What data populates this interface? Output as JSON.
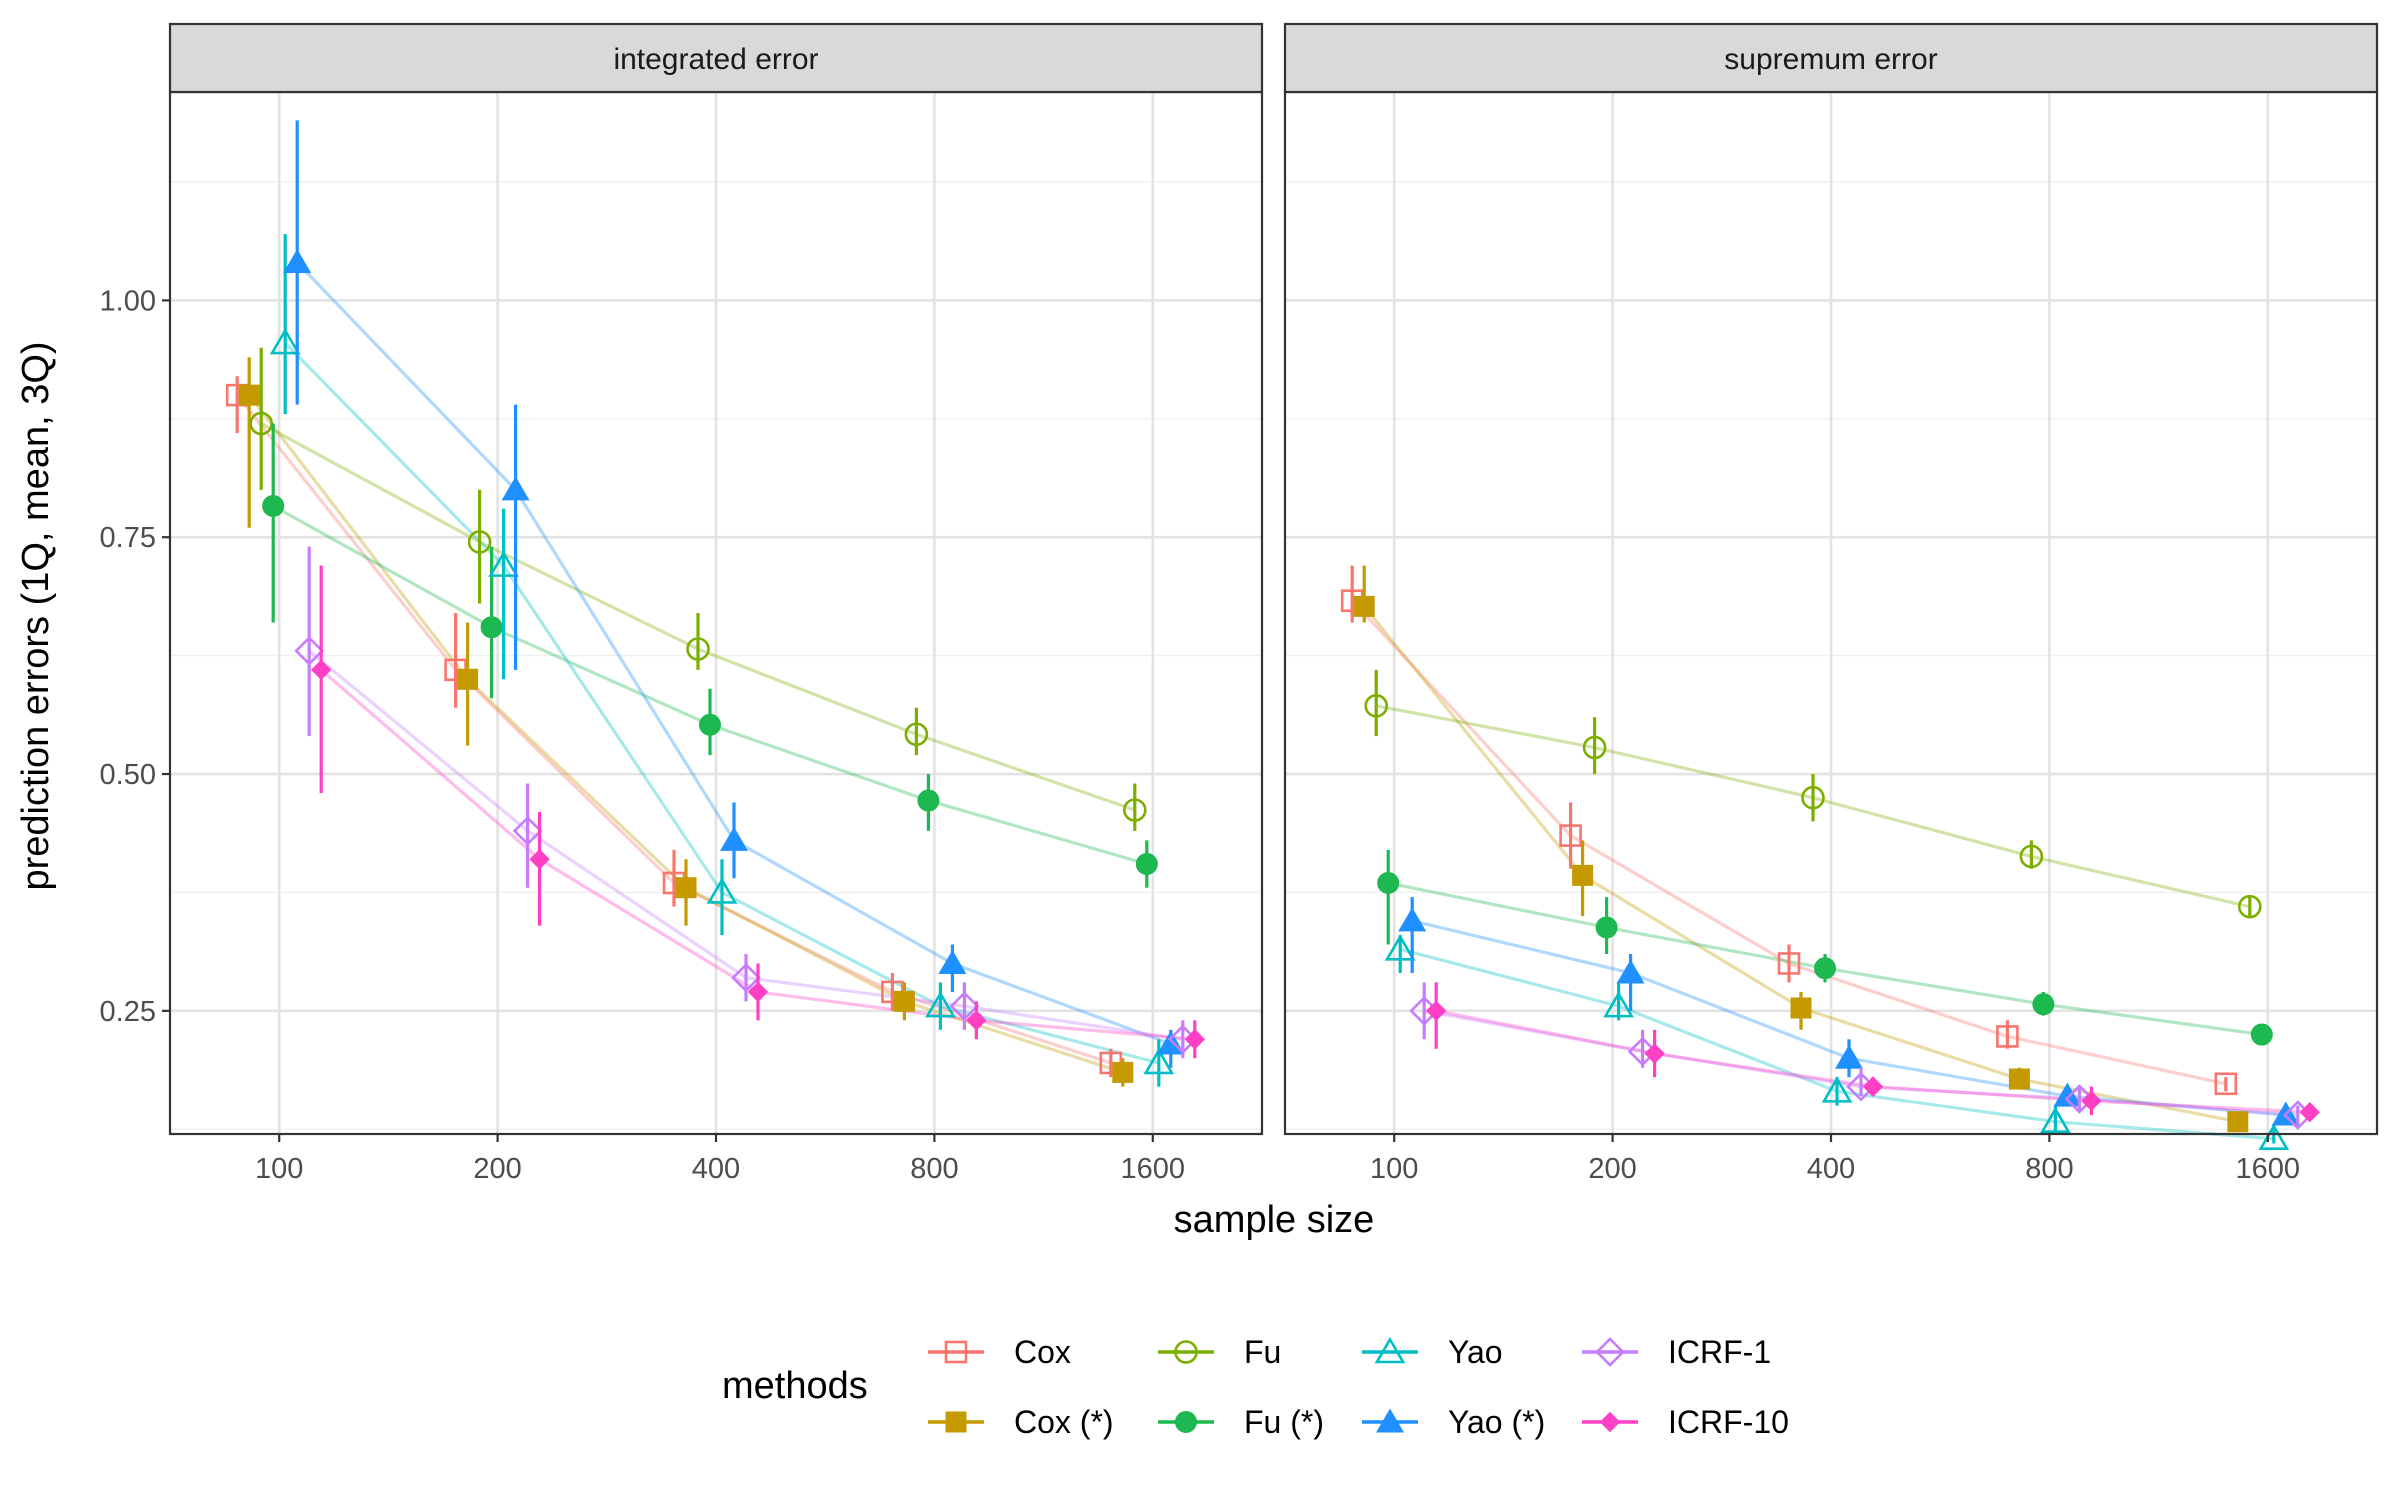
{
  "chart_data": {
    "type": "line",
    "ylabel": "prediction errors (1Q, mean, 3Q)",
    "xlabel": "sample size",
    "x": [
      100,
      200,
      400,
      800,
      1600
    ],
    "xtick_labels": [
      "100",
      "200",
      "400",
      "800",
      "1600"
    ],
    "yticks": [
      0.25,
      0.5,
      0.75,
      1.0
    ],
    "ytick_labels": [
      "0.25",
      "0.50",
      "0.75",
      "1.00"
    ],
    "grid": true,
    "legend_title": "methods",
    "legend_position": "bottom",
    "methods": [
      {
        "name": "Cox",
        "color": "#F8766D",
        "shape": "square-open"
      },
      {
        "name": "Cox (*)",
        "color": "#C49A00",
        "shape": "square-filled"
      },
      {
        "name": "Fu",
        "color": "#7CAE00",
        "shape": "circle-open"
      },
      {
        "name": "Fu (*)",
        "color": "#1DB84F",
        "shape": "circle-filled"
      },
      {
        "name": "Yao",
        "color": "#00BFC4",
        "shape": "triangle-open"
      },
      {
        "name": "Yao (*)",
        "color": "#1E90FF",
        "shape": "triangle-filled"
      },
      {
        "name": "ICRF-1",
        "color": "#C77CFF",
        "shape": "diamond-open"
      },
      {
        "name": "ICRF-10",
        "color": "#FF3FC4",
        "shape": "diamond-filled"
      }
    ],
    "panels": [
      {
        "title": "integrated error",
        "ylim": [
          0.12,
          1.22
        ],
        "series": [
          {
            "name": "Cox",
            "mean": [
              0.9,
              0.61,
              0.385,
              0.27,
              0.195
            ],
            "q1": [
              0.86,
              0.57,
              0.36,
              0.25,
              0.18
            ],
            "q3": [
              0.92,
              0.67,
              0.42,
              0.29,
              0.21
            ]
          },
          {
            "name": "Cox (*)",
            "mean": [
              0.9,
              0.6,
              0.38,
              0.26,
              0.185
            ],
            "q1": [
              0.76,
              0.53,
              0.34,
              0.24,
              0.17
            ],
            "q3": [
              0.94,
              0.66,
              0.41,
              0.28,
              0.2
            ]
          },
          {
            "name": "Fu",
            "mean": [
              0.87,
              0.745,
              0.632,
              0.542,
              0.462
            ],
            "q1": [
              0.8,
              0.68,
              0.61,
              0.52,
              0.44
            ],
            "q3": [
              0.95,
              0.8,
              0.67,
              0.57,
              0.49
            ]
          },
          {
            "name": "Fu (*)",
            "mean": [
              0.783,
              0.655,
              0.552,
              0.472,
              0.405
            ],
            "q1": [
              0.66,
              0.58,
              0.52,
              0.44,
              0.38
            ],
            "q3": [
              0.87,
              0.74,
              0.59,
              0.5,
              0.43
            ]
          },
          {
            "name": "Yao",
            "mean": [
              0.955,
              0.72,
              0.375,
              0.255,
              0.195
            ],
            "q1": [
              0.88,
              0.6,
              0.33,
              0.23,
              0.17
            ],
            "q3": [
              1.07,
              0.78,
              0.41,
              0.28,
              0.22
            ]
          },
          {
            "name": "Yao (*)",
            "mean": [
              1.04,
              0.8,
              0.43,
              0.3,
              0.215
            ],
            "q1": [
              0.89,
              0.61,
              0.39,
              0.27,
              0.19
            ],
            "q3": [
              1.19,
              0.89,
              0.47,
              0.32,
              0.23
            ]
          },
          {
            "name": "ICRF-1",
            "mean": [
              0.63,
              0.44,
              0.285,
              0.255,
              0.22
            ],
            "q1": [
              0.54,
              0.38,
              0.26,
              0.23,
              0.2
            ],
            "q3": [
              0.74,
              0.49,
              0.31,
              0.28,
              0.24
            ]
          },
          {
            "name": "ICRF-10",
            "mean": [
              0.61,
              0.41,
              0.27,
              0.24,
              0.22
            ],
            "q1": [
              0.48,
              0.34,
              0.24,
              0.22,
              0.2
            ],
            "q3": [
              0.72,
              0.46,
              0.3,
              0.26,
              0.24
            ]
          }
        ]
      },
      {
        "title": "supremum error",
        "ylim": [
          0.12,
          1.22
        ],
        "series": [
          {
            "name": "Cox",
            "mean": [
              0.683,
              0.435,
              0.3,
              0.223,
              0.173
            ],
            "q1": [
              0.66,
              0.4,
              0.28,
              0.21,
              0.165
            ],
            "q3": [
              0.72,
              0.47,
              0.32,
              0.24,
              0.18
            ]
          },
          {
            "name": "Cox (*)",
            "mean": [
              0.677,
              0.393,
              0.253,
              0.178,
              0.133
            ],
            "q1": [
              0.66,
              0.35,
              0.23,
              0.17,
              0.125
            ],
            "q3": [
              0.72,
              0.43,
              0.27,
              0.19,
              0.14
            ]
          },
          {
            "name": "Fu",
            "mean": [
              0.572,
              0.528,
              0.475,
              0.413,
              0.36
            ],
            "q1": [
              0.54,
              0.5,
              0.45,
              0.4,
              0.35
            ],
            "q3": [
              0.61,
              0.56,
              0.5,
              0.43,
              0.37
            ]
          },
          {
            "name": "Fu (*)",
            "mean": [
              0.385,
              0.338,
              0.295,
              0.257,
              0.225
            ],
            "q1": [
              0.32,
              0.31,
              0.28,
              0.245,
              0.215
            ],
            "q3": [
              0.42,
              0.37,
              0.31,
              0.27,
              0.235
            ]
          },
          {
            "name": "Yao",
            "mean": [
              0.315,
              0.255,
              0.165,
              0.133,
              0.115
            ],
            "q1": [
              0.29,
              0.24,
              0.15,
              0.12,
              0.11
            ],
            "q3": [
              0.33,
              0.28,
              0.18,
              0.15,
              0.13
            ]
          },
          {
            "name": "Yao (*)",
            "mean": [
              0.345,
              0.29,
              0.2,
              0.16,
              0.14
            ],
            "q1": [
              0.29,
              0.25,
              0.18,
              0.15,
              0.13
            ],
            "q3": [
              0.37,
              0.31,
              0.22,
              0.17,
              0.15
            ]
          },
          {
            "name": "ICRF-1",
            "mean": [
              0.25,
              0.207,
              0.17,
              0.157,
              0.14
            ],
            "q1": [
              0.22,
              0.19,
              0.16,
              0.145,
              0.13
            ],
            "q3": [
              0.28,
              0.23,
              0.19,
              0.17,
              0.15
            ]
          },
          {
            "name": "ICRF-10",
            "mean": [
              0.25,
              0.205,
              0.17,
              0.155,
              0.143
            ],
            "q1": [
              0.21,
              0.18,
              0.16,
              0.14,
              0.135
            ],
            "q3": [
              0.28,
              0.23,
              0.18,
              0.17,
              0.15
            ]
          }
        ]
      }
    ]
  }
}
